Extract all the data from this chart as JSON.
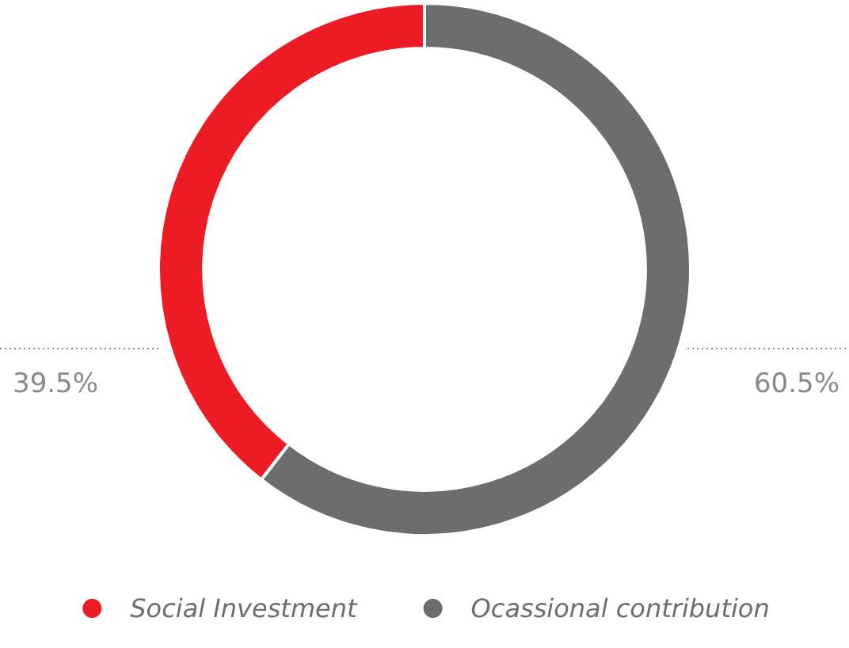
{
  "chart_data": {
    "type": "donut",
    "categories": [
      "Social Investment",
      "Ocassional contribution"
    ],
    "values": [
      39.5,
      60.5
    ],
    "colors": [
      "#ed1c24",
      "#6b6e6d"
    ],
    "value_labels": [
      "39.5%",
      "60.5%"
    ],
    "legend": "bottom"
  }
}
